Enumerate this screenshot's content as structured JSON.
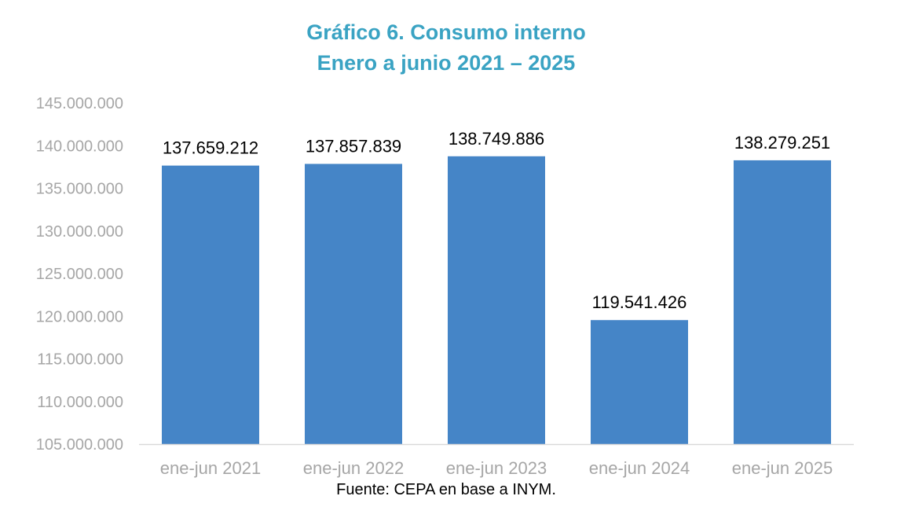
{
  "title_line1": "Gráfico 6. Consumo interno",
  "title_line2": "Enero a junio 2021 – 2025",
  "source": "Fuente: CEPA en base a INYM.",
  "colors": {
    "title": "#3aa3c3",
    "bar": "#4585c7",
    "axis_text": "#a6a6a6",
    "label_text": "#000000",
    "axis_line": "#d9d9d9"
  },
  "chart_data": {
    "type": "bar",
    "categories": [
      "ene-jun 2021",
      "ene-jun 2022",
      "ene-jun 2023",
      "ene-jun 2024",
      "ene-jun 2025"
    ],
    "values": [
      137659212,
      137857839,
      138749886,
      119541426,
      138279251
    ],
    "data_labels": [
      "137.659.212",
      "137.857.839",
      "138.749.886",
      "119.541.426",
      "138.279.251"
    ],
    "yticks": [
      105000000,
      110000000,
      115000000,
      120000000,
      125000000,
      130000000,
      135000000,
      140000000,
      145000000
    ],
    "ytick_labels": [
      "105.000.000",
      "110.000.000",
      "115.000.000",
      "120.000.000",
      "125.000.000",
      "130.000.000",
      "135.000.000",
      "140.000.000",
      "145.000.000"
    ],
    "ylim": [
      105000000,
      145000000
    ],
    "grid": false,
    "legend": "none"
  }
}
